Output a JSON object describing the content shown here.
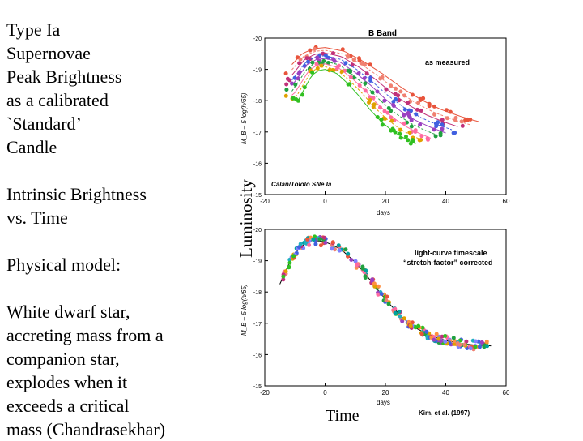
{
  "slide": {
    "left_paragraphs": [
      "Type Ia\nSupernovae\nPeak Brightness\nas a calibrated\n`Standard’\nCandle",
      "Intrinsic Brightness\nvs. Time",
      "Physical model:",
      "White dwarf star,\naccreting mass from a\ncompanion star,\nexplodes when it\nexceeds a critical\nmass (Chandrasekhar)"
    ],
    "y_axis_caption": "Luminosity",
    "x_axis_caption": "Time",
    "citation": "Kim, et al. (1997)"
  },
  "chart_data": [
    {
      "type": "line",
      "title": "B Band",
      "annotation": "as measured",
      "sample_label": "Calan/Tololo SNe Ia",
      "xlabel": "days",
      "ylabel": "M_B – 5 log(h/65)",
      "xlim": [
        -20,
        60
      ],
      "ylim": [
        -15,
        -20
      ],
      "x_ticks": [
        "-20",
        "0",
        "20",
        "40",
        "60"
      ],
      "y_ticks": [
        "-20",
        "-19",
        "-18",
        "-17",
        "-16",
        "-15"
      ],
      "y_tick_values": [
        -20,
        -19,
        -18,
        -17,
        -16,
        -15
      ],
      "series_summary": {
        "count": 9,
        "peak_range": [
          -19.7,
          -19.0
        ],
        "template_x": [
          -12,
          -6,
          -3,
          0,
          5,
          10,
          15,
          20,
          25,
          30,
          35,
          40
        ],
        "template_drop": [
          1.0,
          0.2,
          0.04,
          0.0,
          0.12,
          0.45,
          0.85,
          1.3,
          1.68,
          1.98,
          2.2,
          2.38
        ],
        "stretch_factors": [
          1.28,
          1.2,
          1.12,
          1.06,
          1.0,
          0.94,
          0.88,
          0.82,
          0.75
        ],
        "colors": [
          "#e8543c",
          "#f08070",
          "#c0307a",
          "#4060e0",
          "#9a40c0",
          "#20a040",
          "#ff6aa0",
          "#e0a000",
          "#30c020"
        ]
      }
    },
    {
      "type": "scatter",
      "annotation": "light-curve timescale\n“stretch-factor” corrected",
      "xlabel": "days",
      "ylabel": "M_B – 5 log(h/65)",
      "xlim": [
        -20,
        60
      ],
      "ylim": [
        -15,
        -20
      ],
      "x_ticks": [
        "-20",
        "0",
        "20",
        "40",
        "60"
      ],
      "y_ticks": [
        "-20",
        "-19",
        "-18",
        "-17",
        "-16",
        "-15"
      ],
      "y_tick_values": [
        -20,
        -19,
        -18,
        -17,
        -16,
        -15
      ],
      "template_x": [
        -15,
        -12,
        -9,
        -6,
        -4,
        -2,
        0,
        3,
        6,
        10,
        14,
        18,
        22,
        26,
        30,
        35,
        40,
        45,
        50,
        55
      ],
      "template_y": [
        -18.25,
        -18.9,
        -19.35,
        -19.6,
        -19.65,
        -19.63,
        -19.6,
        -19.48,
        -19.3,
        -18.95,
        -18.5,
        -18.0,
        -17.55,
        -17.15,
        -16.85,
        -16.6,
        -16.45,
        -16.35,
        -16.3,
        -16.28
      ]
    }
  ]
}
